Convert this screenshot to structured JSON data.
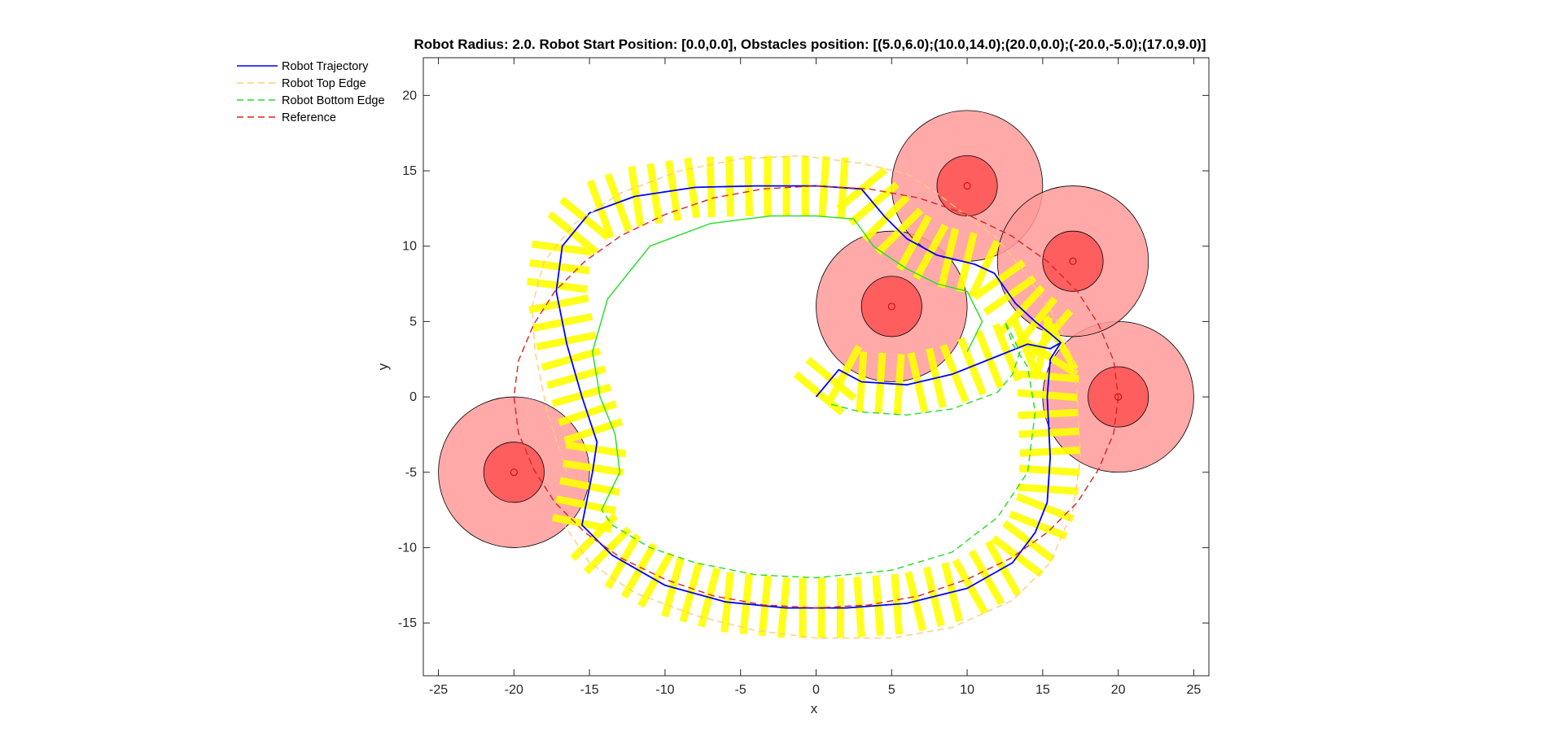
{
  "chart_data": {
    "type": "line",
    "title": "Robot Radius: 2.0. Robot Start Position: [0.0,0.0], Obstacles position: [(5.0,6.0);(10.0,14.0);(20.0,0.0);(-20.0,-5.0);(17.0,9.0)]",
    "xlabel": "x",
    "ylabel": "y",
    "xlim": [
      -26,
      26
    ],
    "ylim": [
      -18.5,
      22.5
    ],
    "xticks": [
      -25,
      -20,
      -15,
      -10,
      -5,
      0,
      5,
      10,
      15,
      20,
      25
    ],
    "yticks": [
      -15,
      -10,
      -5,
      0,
      5,
      10,
      15,
      20
    ],
    "grid": false,
    "legend_position": "outside-top-left",
    "robot_radius": 2.0,
    "obstacle_inner_radius": 2.0,
    "obstacle_outer_radius": 5.0,
    "obstacles": [
      {
        "x": 5,
        "y": 6
      },
      {
        "x": 10,
        "y": 14
      },
      {
        "x": 20,
        "y": 0
      },
      {
        "x": -20,
        "y": -5
      },
      {
        "x": 17,
        "y": 9
      }
    ],
    "colors": {
      "trajectory": "#0000ff",
      "top_edge": "#ffcc80",
      "bottom_edge": "#22dd22",
      "reference": "#dd2222",
      "robot_body": "#ffff00",
      "obstacle_outer": "#ff9a9a",
      "obstacle_inner": "#ff5555"
    },
    "series": [
      {
        "name": "Robot Trajectory",
        "style": "solid",
        "x": [
          0,
          1.5,
          3.0,
          6.0,
          9.0,
          12.0,
          14.0,
          15.5,
          16.2,
          15.5,
          15.3,
          15.5,
          15.3,
          14.5,
          13.0,
          10.0,
          6.0,
          2.0,
          -2.0,
          -6.0,
          -10.0,
          -13.5,
          -15.5,
          -14.8,
          -14.5,
          -15.5,
          -16.5,
          -17.2,
          -16.8,
          -15.0,
          -12.0,
          -8.0,
          -4.0,
          0.0,
          3.0,
          4.5,
          6.0,
          8.0,
          10.5,
          11.8,
          13.2,
          14.5,
          15.5,
          16.2
        ],
        "y": [
          0,
          1.8,
          1.0,
          0.8,
          1.5,
          2.7,
          3.5,
          3.2,
          3.6,
          2.5,
          0.0,
          -4.0,
          -7.0,
          -9.0,
          -11.0,
          -12.7,
          -13.7,
          -14.0,
          -14.0,
          -13.6,
          -12.5,
          -10.5,
          -8.5,
          -5.0,
          -3.0,
          0.0,
          3.5,
          7.0,
          10.0,
          12.2,
          13.3,
          13.9,
          14.0,
          14.0,
          13.8,
          12.0,
          10.5,
          9.4,
          8.8,
          8.2,
          6.2,
          5.0,
          4.2,
          3.6
        ]
      },
      {
        "name": "Robot Top Edge",
        "style": "dashed",
        "x": [
          -16.5,
          -17.8,
          -18.6,
          -18.8,
          -18.0,
          -16.0,
          -13.0,
          -9.0,
          -5.0,
          -1.0,
          3.0,
          6.0,
          8.0,
          10.0,
          12.0,
          14.0,
          16.0,
          17.0,
          17.3,
          17.5,
          17.0,
          15.5,
          13.0,
          9.0,
          5.0,
          0.0,
          -4.0,
          -8.0,
          -12.0,
          -15.0,
          -17.0
        ],
        "y": [
          -5.0,
          -1.0,
          3.0,
          6.0,
          9.0,
          11.5,
          13.5,
          15.0,
          15.8,
          16.0,
          15.5,
          14.8,
          13.5,
          12.0,
          10.5,
          8.0,
          5.0,
          2.5,
          0.0,
          -4.0,
          -7.5,
          -11.0,
          -13.5,
          -15.3,
          -16.0,
          -16.0,
          -15.5,
          -14.5,
          -13.0,
          -11.0,
          -8.0
        ]
      },
      {
        "name": "Robot Bottom Edge",
        "style": "dashed",
        "x": [
          1.0,
          3.0,
          6.0,
          9.0,
          12.0,
          13.0,
          13.5,
          12.5,
          13.0,
          14.0,
          14.5,
          14.0,
          12.0,
          9.0,
          5.0,
          0.0,
          -4.0,
          -8.0,
          -11.0,
          -13.5,
          -14.2
        ],
        "y": [
          -0.5,
          -1.0,
          -1.2,
          -0.8,
          0.3,
          1.5,
          3.0,
          5.0,
          3.5,
          2.0,
          -1.0,
          -5.0,
          -8.0,
          -10.3,
          -11.5,
          -12.0,
          -11.8,
          -11.0,
          -10.0,
          -8.5,
          -7.5
        ]
      },
      {
        "name": "",
        "style": "solid",
        "color_key": "bottom_edge",
        "x": [
          -14.2,
          -13.0,
          -13.3,
          -14.3,
          -14.8,
          -13.8,
          -11.0,
          -7.0,
          -3.0,
          0.0,
          2.5,
          3.8,
          4.5,
          6.0,
          8.0,
          10.0,
          11.0,
          10.0
        ],
        "y": [
          -7.5,
          -5.0,
          -2.5,
          0.0,
          3.0,
          6.5,
          10.0,
          11.5,
          12.0,
          12.0,
          11.8,
          10.0,
          9.5,
          8.5,
          7.5,
          7.0,
          5.0,
          3.0
        ]
      },
      {
        "name": "Reference",
        "style": "dashed",
        "x": [
          20.0,
          19.7,
          18.7,
          17.3,
          15.3,
          12.9,
          10.0,
          6.8,
          3.5,
          0.0,
          -3.5,
          -6.8,
          -10.0,
          -12.9,
          -15.3,
          -17.3,
          -18.7,
          -19.7,
          -20.0,
          -19.7,
          -18.7,
          -17.3,
          -15.3,
          -12.9,
          -10.0,
          -6.8,
          -3.5,
          0.0,
          3.5,
          6.8,
          10.0,
          12.9,
          15.3,
          17.3,
          18.7,
          19.7,
          20.0
        ],
        "y": [
          0.0,
          -2.4,
          -4.8,
          -7.0,
          -9.0,
          -10.7,
          -12.1,
          -13.2,
          -13.8,
          -14.0,
          -13.8,
          -13.2,
          -12.1,
          -10.7,
          -9.0,
          -7.0,
          -4.8,
          -2.4,
          0.0,
          2.4,
          4.8,
          7.0,
          9.0,
          10.7,
          12.1,
          13.2,
          13.8,
          14.0,
          13.8,
          13.2,
          12.1,
          10.7,
          9.0,
          7.0,
          4.8,
          2.4,
          0.0
        ]
      }
    ]
  }
}
